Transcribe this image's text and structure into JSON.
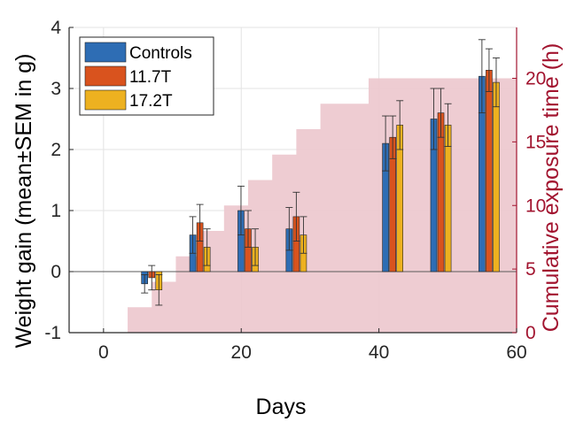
{
  "chart_data": {
    "type": "bar",
    "xlabel": "Days",
    "ylabel": "Weight gain (mean±SEM in g)",
    "ylabel_right": "Cumulative exposure time (h)",
    "xlim": [
      -5,
      60
    ],
    "ylim": [
      -1,
      4
    ],
    "ylim_right": [
      0,
      24
    ],
    "xticks": [
      "0",
      "20",
      "40",
      "60"
    ],
    "yticks_left": [
      "-1",
      "0",
      "1",
      "2",
      "3",
      "4"
    ],
    "yticks_right": [
      "0",
      "5",
      "10",
      "15",
      "20"
    ],
    "grid": true,
    "legend_placement": "top-left",
    "colors": {
      "Controls": "#2e6db4",
      "11.7T": "#d9531e",
      "17.2T": "#edb120",
      "exposure": "#a2142f",
      "exposure_fill": "#ecc7cd"
    },
    "series": [
      {
        "name": "Controls",
        "x": [
          0,
          7,
          14,
          21,
          28,
          42,
          49,
          56
        ],
        "values": [
          0,
          -0.2,
          0.6,
          1.0,
          0.7,
          2.1,
          2.5,
          3.2
        ],
        "sem": [
          0,
          0.15,
          0.3,
          0.4,
          0.35,
          0.45,
          0.5,
          0.6
        ]
      },
      {
        "name": "11.7T",
        "x": [
          0,
          7,
          14,
          21,
          28,
          42,
          49,
          56
        ],
        "values": [
          0,
          -0.1,
          0.8,
          0.7,
          0.9,
          2.2,
          2.6,
          3.3
        ],
        "sem": [
          0,
          0.2,
          0.3,
          0.3,
          0.4,
          0.35,
          0.4,
          0.35
        ]
      },
      {
        "name": "17.2T",
        "x": [
          0,
          7,
          14,
          21,
          28,
          42,
          49,
          56
        ],
        "values": [
          0,
          -0.3,
          0.4,
          0.4,
          0.6,
          2.4,
          2.4,
          3.1
        ],
        "sem": [
          0,
          0.25,
          0.3,
          0.3,
          0.3,
          0.4,
          0.35,
          0.4
        ]
      }
    ],
    "cumulative_exposure": {
      "days": [
        0,
        3.5,
        7,
        10.5,
        14,
        17.5,
        21,
        24.5,
        28,
        31.5,
        35,
        38.5,
        60
      ],
      "hours": [
        0,
        2,
        4,
        6,
        8,
        10,
        12,
        14,
        16,
        18,
        18,
        20,
        20
      ]
    }
  }
}
